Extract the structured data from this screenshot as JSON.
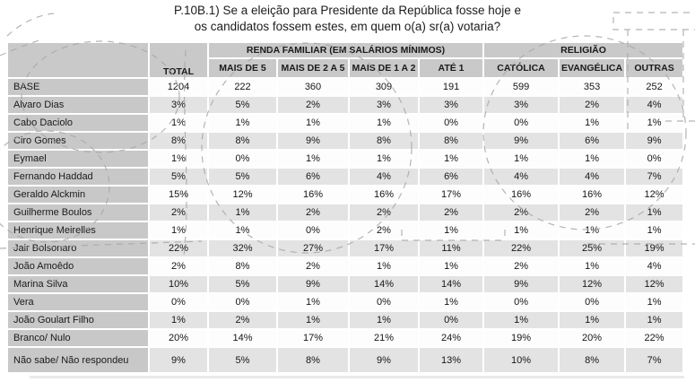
{
  "title": {
    "line1": "P.10B.1) Se a eleição para Presidente da República fosse hoje e",
    "line2": "os candidatos fossem estes, em quem o(a) sr(a) votaria?"
  },
  "table": {
    "corner_label": "",
    "columns": [
      "TOTAL",
      "MAIS DE 5",
      "MAIS DE 2 A 5",
      "MAIS DE 1 A 2",
      "ATÉ 1",
      "CATÓLICA",
      "EVANGÉLICA",
      "OUTRAS"
    ],
    "groups": [
      {
        "label": "RENDA FAMILIAR (EM SALÁRIOS MÍNIMOS)",
        "columns": [
          "MAIS DE 5",
          "MAIS DE 2 A 5",
          "MAIS DE 1 A 2",
          "ATÉ 1"
        ]
      },
      {
        "label": "RELIGIÃO",
        "columns": [
          "CATÓLICA",
          "EVANGÉLICA",
          "OUTRAS"
        ]
      }
    ],
    "rows": [
      {
        "label": "BASE",
        "values": [
          "1204",
          "222",
          "360",
          "309",
          "191",
          "599",
          "353",
          "252"
        ]
      },
      {
        "label": "Alvaro Dias",
        "values": [
          "3%",
          "5%",
          "2%",
          "3%",
          "3%",
          "3%",
          "2%",
          "4%"
        ]
      },
      {
        "label": "Cabo Daciolo",
        "values": [
          "1%",
          "1%",
          "1%",
          "1%",
          "0%",
          "0%",
          "1%",
          "1%"
        ]
      },
      {
        "label": "Ciro Gomes",
        "values": [
          "8%",
          "8%",
          "9%",
          "8%",
          "8%",
          "9%",
          "6%",
          "9%"
        ]
      },
      {
        "label": "Eymael",
        "values": [
          "1%",
          "0%",
          "1%",
          "1%",
          "1%",
          "1%",
          "1%",
          "0%"
        ]
      },
      {
        "label": "Fernando Haddad",
        "values": [
          "5%",
          "5%",
          "6%",
          "4%",
          "6%",
          "4%",
          "4%",
          "7%"
        ]
      },
      {
        "label": "Geraldo Alckmin",
        "values": [
          "15%",
          "12%",
          "16%",
          "16%",
          "17%",
          "16%",
          "16%",
          "12%"
        ]
      },
      {
        "label": "Guilherme Boulos",
        "values": [
          "2%",
          "1%",
          "2%",
          "2%",
          "2%",
          "2%",
          "2%",
          "1%"
        ]
      },
      {
        "label": "Henrique Meirelles",
        "values": [
          "1%",
          "1%",
          "0%",
          "2%",
          "1%",
          "1%",
          "1%",
          "1%"
        ]
      },
      {
        "label": "Jair Bolsonaro",
        "values": [
          "22%",
          "32%",
          "27%",
          "17%",
          "11%",
          "22%",
          "25%",
          "19%"
        ]
      },
      {
        "label": "João Amoêdo",
        "values": [
          "2%",
          "8%",
          "2%",
          "1%",
          "1%",
          "2%",
          "1%",
          "4%"
        ]
      },
      {
        "label": "Marina Silva",
        "values": [
          "10%",
          "5%",
          "9%",
          "14%",
          "14%",
          "9%",
          "12%",
          "12%"
        ]
      },
      {
        "label": "Vera",
        "values": [
          "0%",
          "0%",
          "1%",
          "0%",
          "1%",
          "0%",
          "0%",
          "1%"
        ]
      },
      {
        "label": "João Goulart Filho",
        "values": [
          "1%",
          "2%",
          "1%",
          "1%",
          "0%",
          "1%",
          "1%",
          "1%"
        ]
      },
      {
        "label": "Branco/ Nulo",
        "values": [
          "20%",
          "14%",
          "17%",
          "21%",
          "24%",
          "19%",
          "20%",
          "22%"
        ]
      },
      {
        "label": "Não sabe/ Não respondeu",
        "values": [
          "9%",
          "5%",
          "8%",
          "9%",
          "13%",
          "10%",
          "8%",
          "7%"
        ]
      }
    ]
  },
  "colors": {
    "header_bg": "#c9c9c9",
    "label_column_bg": "#c8c8c8",
    "row_shaded_bg": "#e3e3e3",
    "row_plain_bg": "#fdfdfd",
    "text": "#1b1b1b",
    "sketch_dash": "#a8a8a8"
  }
}
